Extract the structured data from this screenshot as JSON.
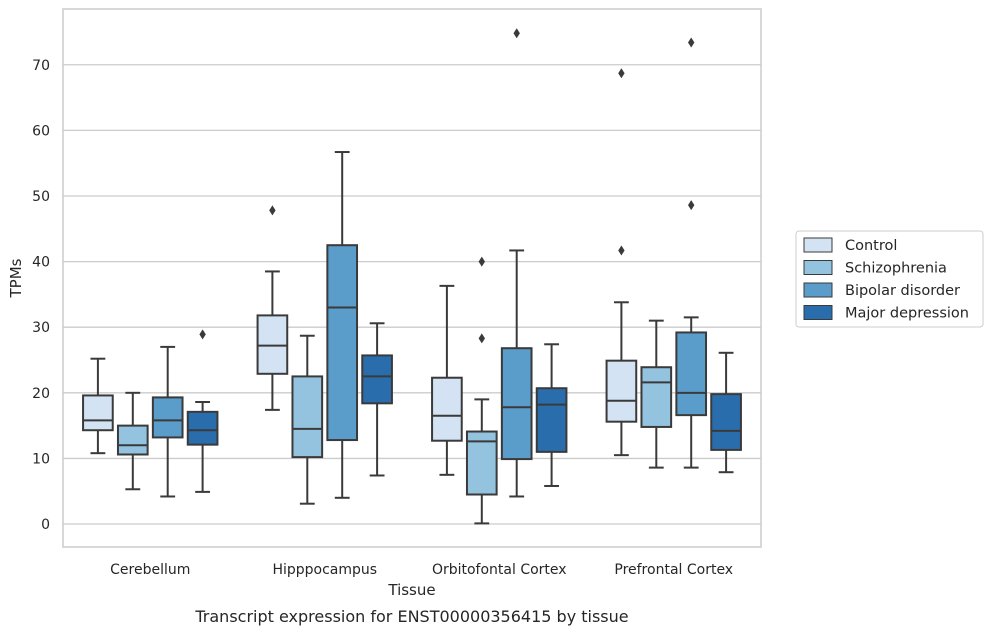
{
  "caption": "Transcript expression for ENST00000356415 by tissue",
  "chart_data": {
    "type": "box",
    "title": "",
    "xlabel": "Tissue",
    "ylabel": "TPMs",
    "ylim": [
      -3.5,
      78.5
    ],
    "yticks": [
      0,
      10,
      20,
      30,
      40,
      50,
      60,
      70
    ],
    "grid": true,
    "legend_position": "right",
    "categories": [
      "Cerebellum",
      "Hipppocampus",
      "Orbitofontal Cortex",
      "Prefrontal Cortex"
    ],
    "series": [
      {
        "name": "Control",
        "color": "#d4e3f3",
        "boxes": [
          {
            "low": 10.8,
            "q1": 14.3,
            "median": 15.8,
            "q3": 19.6,
            "high": 25.2,
            "outliers": []
          },
          {
            "low": 17.4,
            "q1": 22.9,
            "median": 27.2,
            "q3": 31.8,
            "high": 38.5,
            "outliers": [
              47.8
            ]
          },
          {
            "low": 7.5,
            "q1": 12.7,
            "median": 16.5,
            "q3": 22.3,
            "high": 36.3,
            "outliers": []
          },
          {
            "low": 10.5,
            "q1": 15.6,
            "median": 18.8,
            "q3": 24.9,
            "high": 33.8,
            "outliers": [
              41.7,
              68.7
            ]
          }
        ]
      },
      {
        "name": "Schizophrenia",
        "color": "#93c3df",
        "boxes": [
          {
            "low": 5.3,
            "q1": 10.6,
            "median": 12.0,
            "q3": 15.0,
            "high": 20.0,
            "outliers": []
          },
          {
            "low": 3.1,
            "q1": 10.2,
            "median": 14.5,
            "q3": 22.5,
            "high": 28.7,
            "outliers": []
          },
          {
            "low": 0.1,
            "q1": 4.5,
            "median": 12.6,
            "q3": 14.1,
            "high": 19.0,
            "outliers": [
              28.3,
              40.0
            ]
          },
          {
            "low": 8.6,
            "q1": 14.8,
            "median": 21.6,
            "q3": 23.9,
            "high": 31.0,
            "outliers": []
          }
        ]
      },
      {
        "name": "Bipolar disorder",
        "color": "#5a9cca",
        "boxes": [
          {
            "low": 4.2,
            "q1": 13.2,
            "median": 15.8,
            "q3": 19.3,
            "high": 27.0,
            "outliers": []
          },
          {
            "low": 4.0,
            "q1": 12.8,
            "median": 33.0,
            "q3": 42.5,
            "high": 56.7,
            "outliers": []
          },
          {
            "low": 4.2,
            "q1": 9.9,
            "median": 17.8,
            "q3": 26.8,
            "high": 41.7,
            "outliers": [
              74.8
            ]
          },
          {
            "low": 8.6,
            "q1": 16.6,
            "median": 20.0,
            "q3": 29.2,
            "high": 31.5,
            "outliers": [
              48.6,
              73.4
            ]
          }
        ]
      },
      {
        "name": "Major depression",
        "color": "#2a6dad",
        "boxes": [
          {
            "low": 4.9,
            "q1": 12.1,
            "median": 14.3,
            "q3": 17.1,
            "high": 18.6,
            "outliers": [
              28.9
            ]
          },
          {
            "low": 7.4,
            "q1": 18.4,
            "median": 22.5,
            "q3": 25.7,
            "high": 30.6,
            "outliers": []
          },
          {
            "low": 5.8,
            "q1": 11.0,
            "median": 18.2,
            "q3": 20.7,
            "high": 27.4,
            "outliers": []
          },
          {
            "low": 7.9,
            "q1": 11.3,
            "median": 14.2,
            "q3": 19.8,
            "high": 26.1,
            "outliers": []
          }
        ]
      }
    ]
  }
}
